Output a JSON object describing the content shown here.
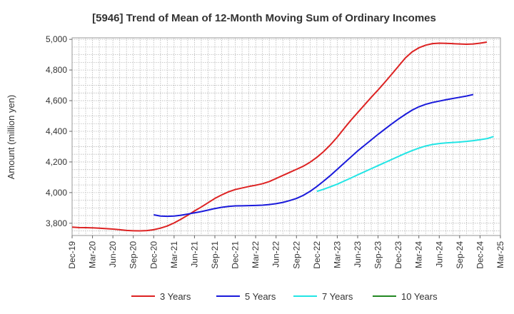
{
  "chart_data": {
    "type": "line",
    "title": "[5946]  Trend of Mean of 12-Month Moving Sum of Ordinary Incomes",
    "xlabel": "",
    "ylabel": "Amount (million yen)",
    "ylim": [
      3720,
      5010
    ],
    "y_ticks": [
      3800,
      4000,
      4200,
      4400,
      4600,
      4800,
      5000
    ],
    "y_tick_labels": [
      "3,800",
      "4,000",
      "4,200",
      "4,400",
      "4,600",
      "4,800",
      "5,000"
    ],
    "x_tick_labels": [
      "Dec-19",
      "Mar-20",
      "Jun-20",
      "Sep-20",
      "Dec-20",
      "Mar-21",
      "Jun-21",
      "Sep-21",
      "Dec-21",
      "Mar-22",
      "Jun-22",
      "Sep-22",
      "Dec-22",
      "Mar-23",
      "Jun-23",
      "Sep-23",
      "Dec-23",
      "Mar-24",
      "Jun-24",
      "Sep-24",
      "Dec-24",
      "Mar-25"
    ],
    "grid": true,
    "legend_position": "bottom",
    "series": [
      {
        "name": "3 Years",
        "color": "#dd2222",
        "start_index": 0,
        "values": [
          3775,
          3772,
          3771,
          3770,
          3768,
          3765,
          3762,
          3758,
          3753,
          3751,
          3750,
          3752,
          3758,
          3768,
          3782,
          3802,
          3826,
          3852,
          3880,
          3906,
          3934,
          3962,
          3985,
          4005,
          4020,
          4030,
          4040,
          4048,
          4058,
          4072,
          4092,
          4112,
          4132,
          4152,
          4172,
          4198,
          4230,
          4268,
          4312,
          4362,
          4418,
          4472,
          4522,
          4572,
          4622,
          4670,
          4720,
          4772,
          4825,
          4878,
          4918,
          4945,
          4962,
          4972,
          4975,
          4974,
          4972,
          4970,
          4968,
          4970,
          4975,
          4982
        ]
      },
      {
        "name": "5 Years",
        "color": "#1a1adb",
        "start_index": 12,
        "values": [
          3855,
          3847,
          3845,
          3847,
          3852,
          3860,
          3868,
          3876,
          3886,
          3896,
          3904,
          3910,
          3913,
          3914,
          3915,
          3916,
          3918,
          3922,
          3928,
          3936,
          3948,
          3962,
          3982,
          4008,
          4040,
          4075,
          4112,
          4152,
          4192,
          4232,
          4272,
          4308,
          4344,
          4380,
          4414,
          4448,
          4480,
          4510,
          4538,
          4560,
          4576,
          4588,
          4597,
          4606,
          4614,
          4622,
          4630,
          4640
        ]
      },
      {
        "name": "7 Years",
        "color": "#22e5e5",
        "start_index": 36,
        "values": [
          4008,
          4022,
          4038,
          4055,
          4075,
          4095,
          4116,
          4136,
          4156,
          4176,
          4196,
          4216,
          4236,
          4256,
          4274,
          4290,
          4304,
          4314,
          4320,
          4324,
          4327,
          4330,
          4334,
          4339,
          4345,
          4352,
          4366
        ]
      },
      {
        "name": "10 Years",
        "color": "#228822",
        "start_index": 0,
        "values": []
      }
    ]
  }
}
